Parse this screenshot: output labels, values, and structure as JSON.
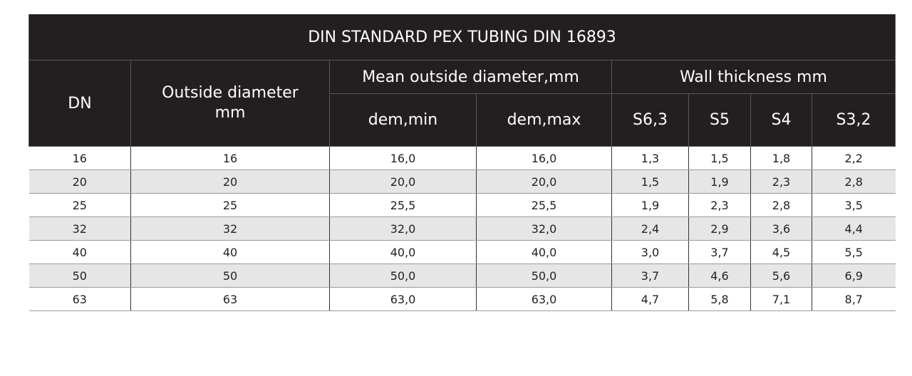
{
  "header": {
    "title": "DIN STANDARD PEX TUBING DIN 16893",
    "dn": "DN",
    "outside_diameter": [
      "Outside diameter",
      "mm"
    ],
    "mean_group": "Mean outside diameter,mm",
    "wall_group": "Wall thickness mm",
    "sub": [
      "dem,min",
      "dem,max",
      "S6,3",
      "S5",
      "S4",
      "S3,2"
    ]
  },
  "table": {
    "rows": [
      [
        "16",
        "16",
        "16,0",
        "16,0",
        "1,3",
        "1,5",
        "1,8",
        "2,2"
      ],
      [
        "20",
        "20",
        "20,0",
        "20,0",
        "1,5",
        "1,9",
        "2,3",
        "2,8"
      ],
      [
        "25",
        "25",
        "25,5",
        "25,5",
        "1,9",
        "2,3",
        "2,8",
        "3,5"
      ],
      [
        "32",
        "32",
        "32,0",
        "32,0",
        "2,4",
        "2,9",
        "3,6",
        "4,4"
      ],
      [
        "40",
        "40",
        "40,0",
        "40,0",
        "3,0",
        "3,7",
        "4,5",
        "5,5"
      ],
      [
        "50",
        "50",
        "50,0",
        "50,0",
        "3,7",
        "4,6",
        "5,6",
        "6,9"
      ],
      [
        "63",
        "63",
        "63,0",
        "63,0",
        "4,7",
        "5,8",
        "7,1",
        "8,7"
      ]
    ]
  }
}
